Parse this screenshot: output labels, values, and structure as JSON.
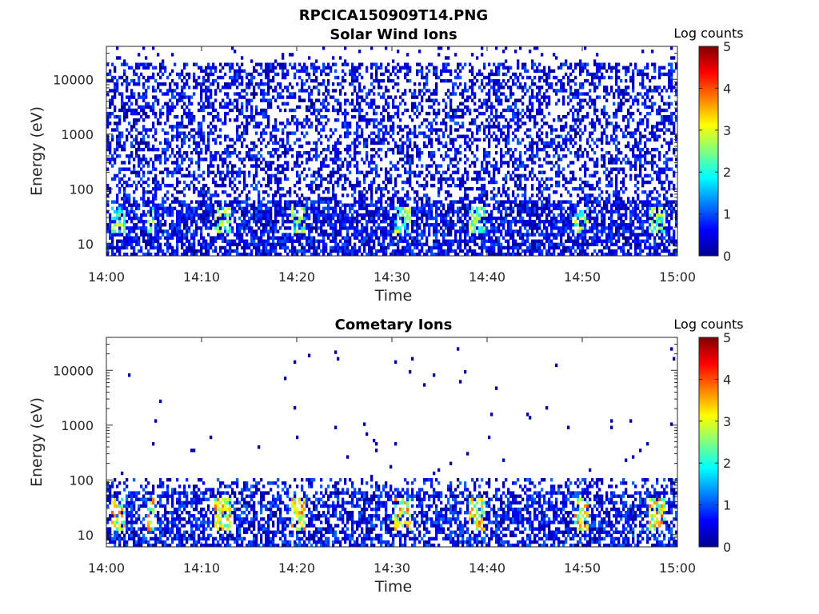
{
  "figure_title": "RPCICA150909T14.PNG",
  "colors": {
    "colormap": "jet",
    "axis": "#262626"
  },
  "chart_data": [
    {
      "type": "heatmap",
      "title": "Solar Wind Ions",
      "xlabel": "Time",
      "ylabel": "Energy (eV)",
      "x_ticks": [
        "14:00",
        "14:10",
        "14:20",
        "14:30",
        "14:40",
        "14:50",
        "15:00"
      ],
      "y_ticks": [
        "10",
        "100",
        "1000",
        "10000"
      ],
      "y_scale": "log",
      "ylim": [
        6,
        40000
      ],
      "colorbar": {
        "label": "Log counts",
        "ticks": [
          "0",
          "1",
          "2",
          "3",
          "4",
          "5"
        ],
        "range": [
          0,
          5
        ]
      },
      "description_of_data": "Sparse low counts (0-1 log) across all energies 10-20000 eV; enhanced bursts (2-3 log) at 20-40 eV"
    },
    {
      "type": "heatmap",
      "title": "Cometary Ions",
      "xlabel": "Time",
      "ylabel": "Energy (eV)",
      "x_ticks": [
        "14:00",
        "14:10",
        "14:20",
        "14:30",
        "14:40",
        "14:50",
        "15:00"
      ],
      "y_ticks": [
        "10",
        "100",
        "1000",
        "10000"
      ],
      "y_scale": "log",
      "ylim": [
        6,
        40000
      ],
      "colorbar": {
        "label": "Log counts",
        "ticks": [
          "0",
          "1",
          "2",
          "3",
          "4",
          "5"
        ],
        "range": [
          0,
          5
        ]
      },
      "description_of_data": "Mostly empty above 150 eV with sparse dots; dense signal below ~100 eV with peaks (3-4 log) around 15-40 eV"
    }
  ]
}
